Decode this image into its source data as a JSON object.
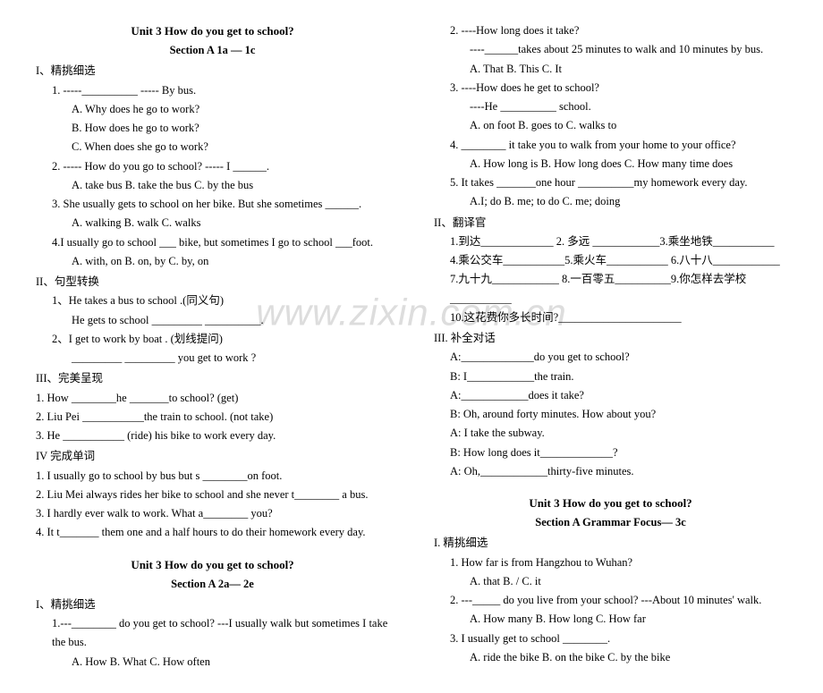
{
  "watermark": "www.zixin.com.cn",
  "left": {
    "unit_title": "Unit 3 How do you get to school?",
    "section_a1": "Section A 1a — 1c",
    "s1_head": "I、精挑细选",
    "q1_stem": "1. -----__________                         ----- By bus.",
    "q1_a": "A. Why does he go to work?",
    "q1_b": "B. How does he go to work?",
    "q1_c": "C. When does she go to work?",
    "q2_stem": "2. ----- How do you go to school?    ----- I ______.",
    "q2_opts": "A. take bus          B. take the bus      C. by the bus",
    "q3_stem": "3. She usually gets to school on her bike. But she sometimes ______.",
    "q3_opts": "A. walking           B. walk                    C. walks",
    "q4_stem": "4.I usually go to school ___ bike, but sometimes I go to school ___foot.",
    "q4_opts": "A. with, on          B. on, by                  C. by, on",
    "s2_head": "II、句型转换",
    "s2_q1a": "1、He takes a bus to school .(同义句)",
    "s2_q1b": "He gets to school _________  __________.",
    "s2_q2a": "2、I get to work by boat . (划线提问)",
    "s2_q2b": "_________    _________   you get to work ?",
    "s3_head": "III、完美呈现",
    "s3_q1": "1. How ________he _______to school? (get)",
    "s3_q2": "2. Liu Pei ___________the train to school. (not take)",
    "s3_q3": "3. He ___________ (ride) his bike to work every day.",
    "s4_head": "IV  完成单词",
    "s4_q1": "1. I usually go to school by bus but s ________on foot.",
    "s4_q2": "2. Liu Mei always rides her bike to school and she never t________ a bus.",
    "s4_q3": "3. I hardly ever walk to work. What a________  you?",
    "s4_q4": "4. It t_______ them one and a half hours to do their homework every day.",
    "section_a2": "Section A 2a— 2e",
    "s5_head": "I、精挑细选",
    "s5_q1": "1.---________ do you get to school?    ---I usually walk but sometimes I take the bus.",
    "s5_q1_opts": "A. How        B. What       C. How often"
  },
  "right": {
    "r_q2_a": "2. ----How long does it take?",
    "r_q2_b": "----______takes about 25 minutes to walk and 10 minutes by bus.",
    "r_q2_opts": "A. That           B. This           C. It",
    "r_q3_a": "3. ----How does he get to school?",
    "r_q3_b": "----He __________ school.",
    "r_q3_opts": "A. on foot      B. goes to      C. walks to",
    "r_q4": "4. ________ it take you to walk from your home to your office?",
    "r_q4_opts": "A. How long is     B. How long does     C. How many time does",
    "r_q5": "5. It takes _______one hour  __________my homework every day.",
    "r_q5_opts": "A.I; do                  B. me; to do               C. me; doing",
    "r_s2_head": "II、翻译官",
    "r_s2_l1": "1.到达_____________   2. 多远 ____________3.乘坐地铁___________",
    "r_s2_l2": "4.乘公交车___________5.乘火车___________   6.八十八____________",
    "r_s2_l3": "7.九十九____________  8.一百零五__________9.你怎样去学校___________",
    "r_s2_l4": "10.这花费你多长时间?______________________",
    "r_s3_head": "III. 补全对话",
    "r_s3_a1": "A:_____________do you get to school?",
    "r_s3_b1": "B: I____________the train.",
    "r_s3_a2": "A:____________does it take?",
    "r_s3_b2": "B: Oh, around forty minutes. How about you?",
    "r_s3_a3": "A: I take the subway.",
    "r_s3_b3": "B: How long does it_____________?",
    "r_s3_a4": "A: Oh,____________thirty-five minutes.",
    "r_unit_title": "Unit 3 How do you get to school?",
    "r_section_gf": "Section A Grammar Focus— 3c",
    "r_s4_head": "I.  精挑细选",
    "r_s4_q1": "1. How far is      from Hangzhou to Wuhan?",
    "r_s4_q1_opts": "A. that                     B. /                         C. it",
    "r_s4_q2": "2. ---_____ do you live from your school?    ---About 10 minutes' walk.",
    "r_s4_q2_opts": "A. How many       B. How long       C. How far",
    "r_s4_q3": "3. I usually get to school ________.",
    "r_s4_q3_opts": "A. ride the bike      B. on the bike      C. by the bike"
  }
}
